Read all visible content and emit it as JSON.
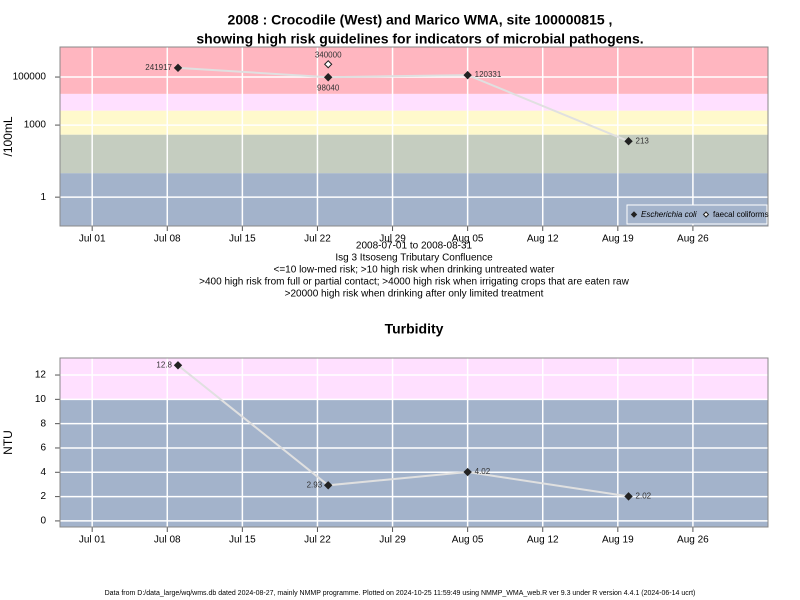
{
  "chart_data": [
    {
      "type": "line",
      "title": [
        "2008 : Crocodile (West) and Marico WMA, site 100000815 ,",
        "showing high risk guidelines for indicators of microbial pathogens."
      ],
      "ylabel": "/100mL",
      "xlabel": [
        "2008-07-01 to 2008-08-31",
        "Isg 3 Itsoseng Tributary Confluence"
      ],
      "notes": [
        "<=10 low-med risk; >10 high risk when drinking untreated water",
        ">400 high risk from full or partial contact; >4000 high risk when irrigating crops that are eaten raw",
        ">20000 high risk when drinking after only limited treatment"
      ],
      "log_y": true,
      "grid": true,
      "legend": "bottom-right",
      "xlim": [
        "2008-06-28",
        "2008-09-02"
      ],
      "xticks": [
        {
          "value": "2008-07-01",
          "label": "Jul 01"
        },
        {
          "value": "2008-07-08",
          "label": "Jul 08"
        },
        {
          "value": "2008-07-15",
          "label": "Jul 15"
        },
        {
          "value": "2008-07-22",
          "label": "Jul 22"
        },
        {
          "value": "2008-07-29",
          "label": "Jul 29"
        },
        {
          "value": "2008-08-05",
          "label": "Aug 05"
        },
        {
          "value": "2008-08-12",
          "label": "Aug 12"
        },
        {
          "value": "2008-08-19",
          "label": "Aug 19"
        },
        {
          "value": "2008-08-26",
          "label": "Aug 26"
        }
      ],
      "ylim": [
        0.063,
        1780000
      ],
      "yticks": [
        1,
        1000,
        100000
      ],
      "bands": [
        {
          "from": 0.063,
          "to": 10,
          "color": "#a3b3cb"
        },
        {
          "from": 10,
          "to": 400,
          "color": "#c5cdc0"
        },
        {
          "from": 400,
          "to": 4000,
          "color": "#fff9cc"
        },
        {
          "from": 4000,
          "to": 20000,
          "color": "#ffe0ff"
        },
        {
          "from": 20000,
          "to": 1780000,
          "color": "#ffb6c0"
        }
      ],
      "series": [
        {
          "name": "Escherichia coli",
          "color": "#222222",
          "x": [
            "2008-07-09",
            "2008-07-23",
            "2008-08-05",
            "2008-08-20"
          ],
          "values": [
            241917,
            98040,
            120331,
            213
          ]
        },
        {
          "name": "faecal coliforms",
          "color": "#ffffff",
          "x": [
            "2008-07-23"
          ],
          "values": [
            340000
          ]
        }
      ]
    },
    {
      "type": "line",
      "title": "Turbidity",
      "ylabel": "NTU",
      "log_y": false,
      "grid": true,
      "xlim": [
        "2008-06-28",
        "2008-09-02"
      ],
      "xticks": [
        {
          "value": "2008-07-01",
          "label": "Jul 01"
        },
        {
          "value": "2008-07-08",
          "label": "Jul 08"
        },
        {
          "value": "2008-07-15",
          "label": "Jul 15"
        },
        {
          "value": "2008-07-22",
          "label": "Jul 22"
        },
        {
          "value": "2008-07-29",
          "label": "Jul 29"
        },
        {
          "value": "2008-08-05",
          "label": "Aug 05"
        },
        {
          "value": "2008-08-12",
          "label": "Aug 12"
        },
        {
          "value": "2008-08-19",
          "label": "Aug 19"
        },
        {
          "value": "2008-08-26",
          "label": "Aug 26"
        }
      ],
      "ylim": [
        -0.5,
        13.4
      ],
      "yticks": [
        0,
        2,
        4,
        6,
        8,
        10,
        12
      ],
      "bands": [
        {
          "from": -0.5,
          "to": 10,
          "color": "#a3b3cb"
        },
        {
          "from": 10,
          "to": 13.4,
          "color": "#ffe0ff"
        }
      ],
      "series": [
        {
          "name": "Turbidity",
          "color": "#222222",
          "x": [
            "2008-07-09",
            "2008-07-23",
            "2008-08-05",
            "2008-08-20"
          ],
          "values": [
            12.8,
            2.93,
            4.02,
            2.02
          ]
        }
      ]
    }
  ],
  "footer": "Data from D:/data_large/wq/wms.db dated 2024-08-27, mainly NMMP programme. Plotted on 2024-10-25 11:59:49 using NMMP_WMA_web.R ver 9.3 under R version 4.4.1 (2024-06-14 ucrt)"
}
